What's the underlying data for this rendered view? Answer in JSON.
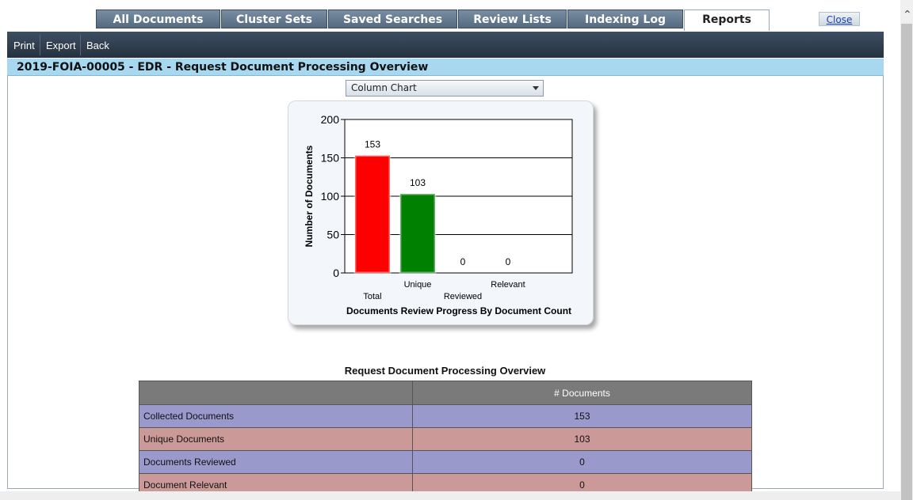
{
  "tabs": [
    {
      "label": "All Documents",
      "active": false
    },
    {
      "label": "Cluster Sets",
      "active": false
    },
    {
      "label": "Saved Searches",
      "active": false
    },
    {
      "label": "Review Lists",
      "active": false
    },
    {
      "label": "Indexing Log",
      "active": false
    },
    {
      "label": "Reports",
      "active": true
    }
  ],
  "close_label": "Close",
  "toolbar": {
    "print": "Print",
    "export": "Export",
    "back": "Back"
  },
  "page_title": "2019-FOIA-00005 - EDR - Request Document Processing Overview",
  "chart_type_select": {
    "selected": "Column Chart"
  },
  "chart_data": {
    "type": "bar",
    "categories": [
      "Total",
      "Unique",
      "Reviewed",
      "Relevant"
    ],
    "values": [
      153,
      103,
      0,
      0
    ],
    "colors": [
      "#ff0000",
      "#008000",
      "#808080",
      "#808080"
    ],
    "xlabel": "Documents Review Progress By Document Count",
    "ylabel": "Number of Documents",
    "ylim": [
      0,
      200
    ],
    "yticks": [
      0,
      50,
      100,
      150,
      200
    ],
    "grid": true
  },
  "table": {
    "title": "Request Document Processing Overview",
    "headers": [
      "",
      "# Documents"
    ],
    "rows": [
      {
        "label": "Collected Documents",
        "value": "153",
        "color": "#9999cc"
      },
      {
        "label": "Unique Documents",
        "value": "103",
        "color": "#cc9999"
      },
      {
        "label": "Documents Reviewed",
        "value": "0",
        "color": "#9999cc"
      },
      {
        "label": "Document Relevant",
        "value": "0",
        "color": "#cc9999"
      }
    ]
  }
}
